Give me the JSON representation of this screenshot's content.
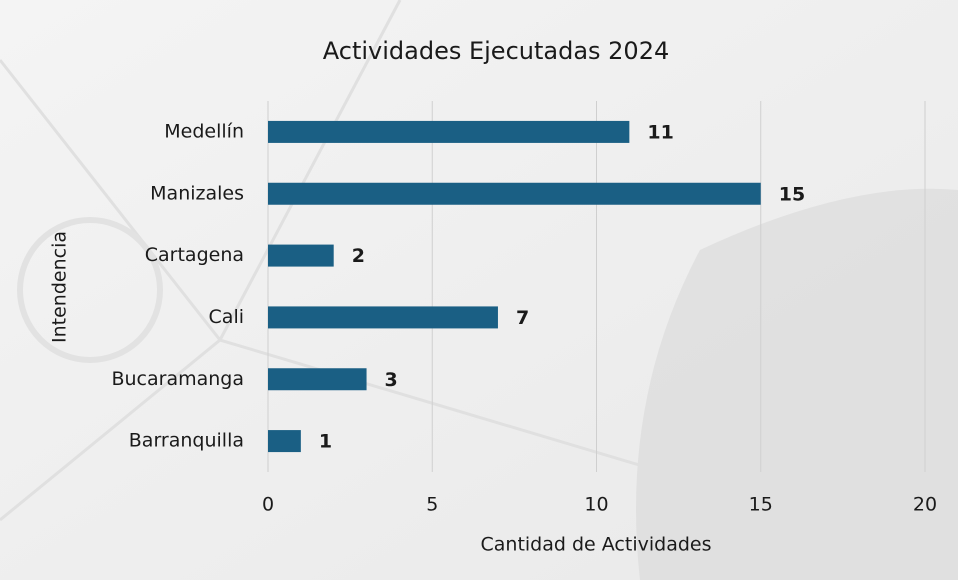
{
  "chart_data": {
    "type": "bar",
    "orientation": "horizontal",
    "title": "Actividades Ejecutadas 2024",
    "x_label": "Cantidad de Actividades",
    "y_label": "Intendencia",
    "categories": [
      "Medellín",
      "Manizales",
      "Cartagena",
      "Cali",
      "Bucaramanga",
      "Barranquilla"
    ],
    "values": [
      11,
      15,
      2,
      7,
      3,
      1
    ],
    "color": "#1a5f84",
    "xlim": [
      0,
      20
    ],
    "xticks": [
      0,
      5,
      10,
      15,
      20
    ],
    "grid": true
  }
}
